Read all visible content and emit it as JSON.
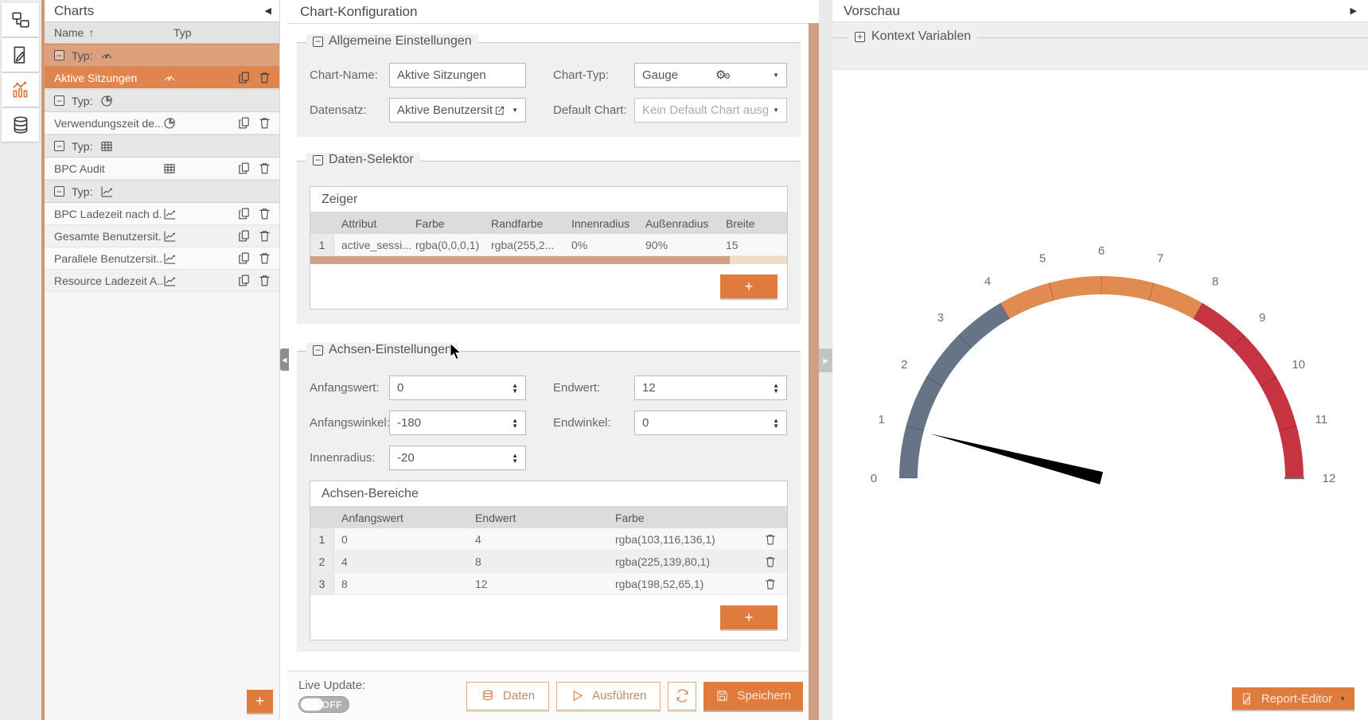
{
  "colors": {
    "accent": "#df7b3c",
    "selected_row": "#e0854e",
    "selected_group": "#dda07c",
    "scrollbar": "#cfa083"
  },
  "charts_panel": {
    "title": "Charts",
    "columns": {
      "name": "Name",
      "typ": "Typ"
    },
    "group_label": "Typ:",
    "rows": [
      {
        "name": "Aktive Sitzungen",
        "type": "gauge"
      },
      {
        "name": "Verwendungszeit de...",
        "type": "pie"
      },
      {
        "name": "BPC Audit",
        "type": "table"
      },
      {
        "name": "BPC Ladezeit nach d...",
        "type": "line"
      },
      {
        "name": "Gesamte Benutzersit...",
        "type": "line"
      },
      {
        "name": "Parallele Benutzersit...",
        "type": "line"
      },
      {
        "name": "Resource Ladezeit A...",
        "type": "line"
      }
    ],
    "add_label": "+"
  },
  "config_panel": {
    "title": "Chart-Konfiguration",
    "general": {
      "legend": "Allgemeine Einstellungen",
      "chart_name_label": "Chart-Name:",
      "chart_name_value": "Aktive Sitzungen",
      "chart_typ_label": "Chart-Typ:",
      "chart_typ_value": "Gauge",
      "datensatz_label": "Datensatz:",
      "datensatz_value": "Aktive Benutzersit",
      "default_chart_label": "Default Chart:",
      "default_chart_placeholder": "Kein Default Chart ausg"
    },
    "data_selector": {
      "legend": "Daten-Selektor",
      "zeiger": {
        "title": "Zeiger",
        "columns": [
          "Attribut",
          "Farbe",
          "Randfarbe",
          "Innenradius",
          "Außenradius",
          "Breite"
        ],
        "rows": [
          {
            "num": "1",
            "attribut": "active_sessi...",
            "farbe": "rgba(0,0,0,1)",
            "randfarbe": "rgba(255,2...",
            "innenradius": "0%",
            "aussenradius": "90%",
            "breite": "15"
          }
        ],
        "add_label": "+"
      }
    },
    "axis": {
      "legend": "Achsen-Einstellungen",
      "anfangswert_label": "Anfangswert:",
      "anfangswert_value": "0",
      "endwert_label": "Endwert:",
      "endwert_value": "12",
      "anfangswinkel_label": "Anfangswinkel:",
      "anfangswinkel_value": "-180",
      "endwinkel_label": "Endwinkel:",
      "endwinkel_value": "0",
      "innenradius_label": "Innenradius:",
      "innenradius_value": "-20",
      "ranges": {
        "title": "Achsen-Bereiche",
        "columns": [
          "Anfangswert",
          "Endwert",
          "Farbe"
        ],
        "rows": [
          {
            "num": "1",
            "from": "0",
            "to": "4",
            "color": "rgba(103,116,136,1)"
          },
          {
            "num": "2",
            "from": "4",
            "to": "8",
            "color": "rgba(225,139,80,1)"
          },
          {
            "num": "3",
            "from": "8",
            "to": "12",
            "color": "rgba(198,52,65,1)"
          }
        ],
        "add_label": "+"
      }
    },
    "footer": {
      "live_update_label": "Live Update:",
      "toggle_state": "OFF",
      "daten_label": "Daten",
      "ausfuehren_label": "Ausführen",
      "speichern_label": "Speichern"
    }
  },
  "preview_panel": {
    "title": "Vorschau",
    "context_legend": "Kontext Variablen",
    "report_editor_label": "Report-Editor"
  },
  "chart_data": {
    "type": "gauge",
    "min": 0,
    "max": 12,
    "tick_step": 1,
    "start_angle": -180,
    "end_angle": 0,
    "ranges": [
      {
        "from": 0,
        "to": 4,
        "color": "rgba(103,116,136,1)"
      },
      {
        "from": 4,
        "to": 8,
        "color": "rgba(225,139,80,1)"
      },
      {
        "from": 8,
        "to": 12,
        "color": "rgba(198,52,65,1)"
      }
    ],
    "tick_labels": [
      "0",
      "1",
      "2",
      "3",
      "4",
      "5",
      "6",
      "7",
      "8",
      "9",
      "10",
      "11",
      "12"
    ],
    "needle_value": 0.97,
    "needle_color": "rgba(0,0,0,1)",
    "pointer_inner_radius": "0%",
    "pointer_outer_radius": "90%",
    "pointer_width": 15
  }
}
